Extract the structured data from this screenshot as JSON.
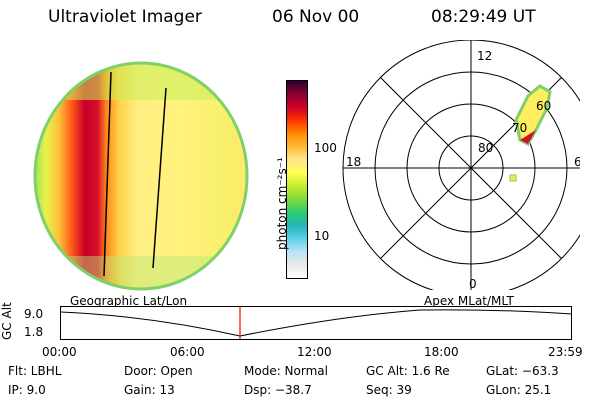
{
  "header": {
    "title": "Ultraviolet Imager",
    "date": "06 Nov 00",
    "time": "08:29:49 UT"
  },
  "colorbar": {
    "unit_label": "photon cm⁻²s⁻¹",
    "ticks": [
      "100",
      "10"
    ],
    "stops": [
      "#ffffff",
      "#e8e8e8",
      "#b7e3f7",
      "#5fd0ec",
      "#20b7b7",
      "#2ecc70",
      "#7fd93a",
      "#c8ec2e",
      "#ffff56",
      "#ffe68c",
      "#ffbb33",
      "#ff8a00",
      "#ff3300",
      "#d0002a",
      "#8a0030",
      "#2a0030"
    ]
  },
  "polar_plot": {
    "mlt_labels": [
      "12",
      "18",
      "6",
      "0"
    ],
    "lat_labels": [
      "60",
      "70",
      "80"
    ]
  },
  "timeline": {
    "left_label": "Geographic Lat/Lon",
    "right_label": "Apex MLat/MLT",
    "y_axis_label": "GC Alt",
    "y_ticks": [
      "9.0",
      "1.8"
    ],
    "x_ticks": [
      "00:00",
      "06:00",
      "12:00",
      "18:00",
      "23:59"
    ],
    "marker_color": "#ff0000"
  },
  "info": {
    "flt": "Flt: LBHL",
    "ip": "IP:  9.0",
    "door": "Door: Open",
    "gain": "Gain: 13",
    "mode": "Mode: Normal",
    "dsp": "Dsp:  −38.7",
    "gc_alt": "GC Alt: 1.6 Re",
    "seq": "Seq: 39",
    "glat": "GLat:  −63.3",
    "glon": "GLon:  25.1"
  }
}
